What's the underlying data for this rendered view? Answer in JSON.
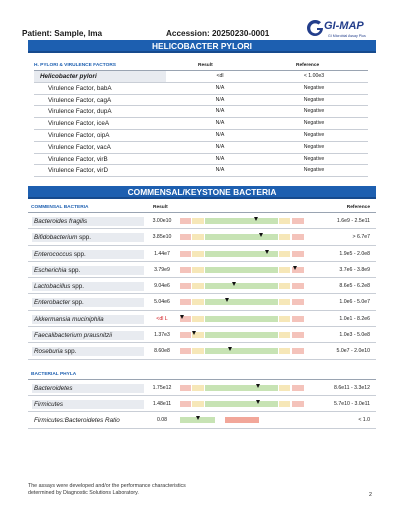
{
  "header": {
    "patient": "Patient: Sample, Ima",
    "accession": "Accession: 20250230-0001",
    "logo_name": "GI-MAP",
    "logo_sub": "GI Microbial Assay Plus"
  },
  "hpylori": {
    "title": "HELICOBACTER PYLORI",
    "col1": "H. PYLORI & VIRULENCE FACTORS",
    "col2": "Result",
    "col3": "Reference",
    "rows": [
      {
        "name": "Helicobacter pylori",
        "result": "<dl",
        "reference": "< 1.00e3"
      },
      {
        "name": "Virulence Factor, babA",
        "result": "N/A",
        "reference": "Negative"
      },
      {
        "name": "Virulence Factor, cagA",
        "result": "N/A",
        "reference": "Negative"
      },
      {
        "name": "Virulence Factor, dupA",
        "result": "N/A",
        "reference": "Negative"
      },
      {
        "name": "Virulence Factor, iceA",
        "result": "N/A",
        "reference": "Negative"
      },
      {
        "name": "Virulence Factor, oipA",
        "result": "N/A",
        "reference": "Negative"
      },
      {
        "name": "Virulence Factor, vacA",
        "result": "N/A",
        "reference": "Negative"
      },
      {
        "name": "Virulence Factor, virB",
        "result": "N/A",
        "reference": "Negative"
      },
      {
        "name": "Virulence Factor, virD",
        "result": "N/A",
        "reference": "Negative"
      }
    ]
  },
  "commensal": {
    "title": "COMMENSAL/KEYSTONE BACTERIA",
    "col1": "COMMENSAL BACTERIA",
    "col2": "Result",
    "col3": "Reference",
    "rows": [
      {
        "name": "Bacteroides fragilis",
        "spp": "",
        "result": "3.00e10",
        "reference": "1.6e9 - 2.5e11",
        "marker": 0.62
      },
      {
        "name": "Bifidobacterium",
        "spp": "spp.",
        "result": "3.85e10",
        "reference": "> 6.7e7",
        "marker": 0.66
      },
      {
        "name": "Enterococcus",
        "spp": "spp.",
        "result": "1.44e7",
        "reference": "1.9e5 - 2.0e8",
        "marker": 0.71
      },
      {
        "name": "Escherichia",
        "spp": "spp.",
        "result": "3.79e9",
        "reference": "3.7e6 - 3.8e9",
        "marker": 0.93
      },
      {
        "name": "Lactobacillus",
        "spp": "spp.",
        "result": "9.04e6",
        "reference": "8.6e5 - 6.2e8",
        "marker": 0.44
      },
      {
        "name": "Enterobacter",
        "spp": "spp.",
        "result": "5.04e6",
        "reference": "1.0e6 - 5.0e7",
        "marker": 0.38
      },
      {
        "name": "Akkermansia muciniphila",
        "spp": "",
        "result": "<dl L",
        "reference": "1.0e1 - 8.2e6",
        "marker": 0.02,
        "low": true
      },
      {
        "name": "Faecalibacterium prausnitzii",
        "spp": "",
        "result": "1.37e3",
        "reference": "1.0e3 - 5.0e8",
        "marker": 0.12
      },
      {
        "name": "Roseburia",
        "spp": "spp.",
        "result": "8.60e8",
        "reference": "5.0e7 - 2.0e10",
        "marker": 0.41
      }
    ]
  },
  "phyla": {
    "col1": "BACTERIAL PHYLA",
    "rows": [
      {
        "name": "Bacteroidetes",
        "spp": "",
        "result": "1.75e12",
        "reference": "8.6e11 - 3.3e12",
        "marker": 0.63
      },
      {
        "name": "Firmicutes",
        "spp": "",
        "result": "1.48e11",
        "reference": "5.7e10 - 3.0e11",
        "marker": 0.63
      },
      {
        "name": "Firmicutes:Bacteroidetes Ratio",
        "spp": "",
        "result": "0.08",
        "reference": "< 1.0",
        "marker": 0.15,
        "ratio": true
      }
    ]
  },
  "gauge_colors": {
    "red": "#f2a79a",
    "yellow": "#f6e7b8",
    "green": "#c7e3b4",
    "pink": "#f4c3bb"
  },
  "footer": {
    "note_line1": "The assays were developed and/or the performance characteristics",
    "note_line2": "determined by Diagnostic Solutions Laboratory.",
    "page": "2"
  }
}
